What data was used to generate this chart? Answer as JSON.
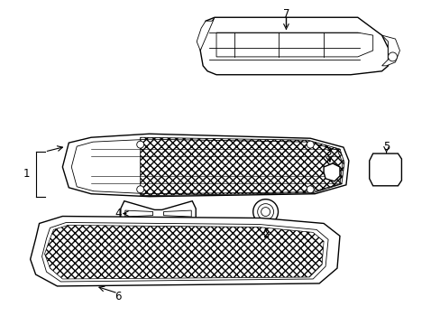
{
  "background_color": "#ffffff",
  "line_color": "#000000",
  "lw": 1.0,
  "tlw": 0.6,
  "label_fontsize": 8.5
}
